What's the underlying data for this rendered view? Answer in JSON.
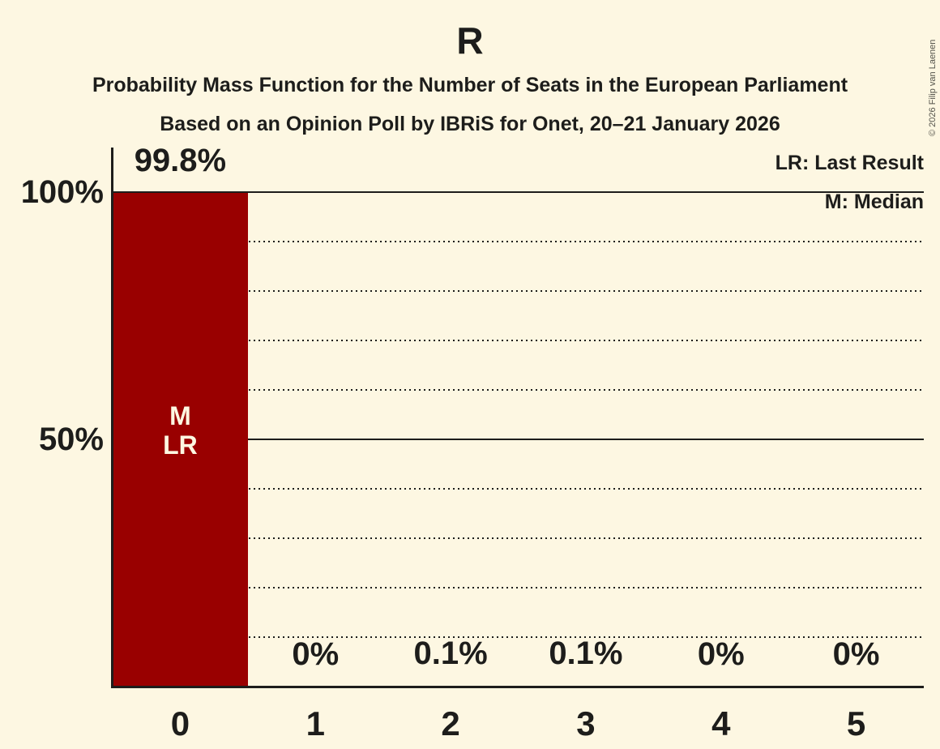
{
  "copyright": "© 2026 Filip van Laenen",
  "colors": {
    "background": "#fdf7e2",
    "bar": "#990000",
    "text": "#1d1d1b",
    "bar_label_text": "#fdf7e2",
    "copyright_text": "#55544c"
  },
  "chart_data": {
    "type": "bar",
    "title": "R",
    "subtitle1": "Probability Mass Function for the Number of Seats in the European Parliament",
    "subtitle2": "Based on an Opinion Poll by IBRiS for Onet, 20–21 January 2026",
    "legend_entries": [
      "LR: Last Result",
      "M: Median"
    ],
    "categories": [
      "0",
      "1",
      "2",
      "3",
      "4",
      "5"
    ],
    "values": [
      99.8,
      0,
      0.1,
      0.1,
      0,
      0
    ],
    "value_labels": [
      "99.8%",
      "0%",
      "0.1%",
      "0.1%",
      "0%",
      "0%"
    ],
    "bar_annotations": [
      [
        "M",
        "LR"
      ],
      [],
      [],
      [],
      [],
      []
    ],
    "ylabels": [
      {
        "value": 100,
        "label": "100%"
      },
      {
        "value": 50,
        "label": "50%"
      }
    ],
    "solid_gridlines": [
      100,
      50
    ],
    "dotted_gridlines": [
      90,
      80,
      70,
      60,
      40,
      30,
      20,
      10
    ],
    "ylim": [
      0,
      100
    ],
    "xlabel": "",
    "ylabel": "",
    "grid": "horizontal-only",
    "legend_position": "top-right"
  }
}
